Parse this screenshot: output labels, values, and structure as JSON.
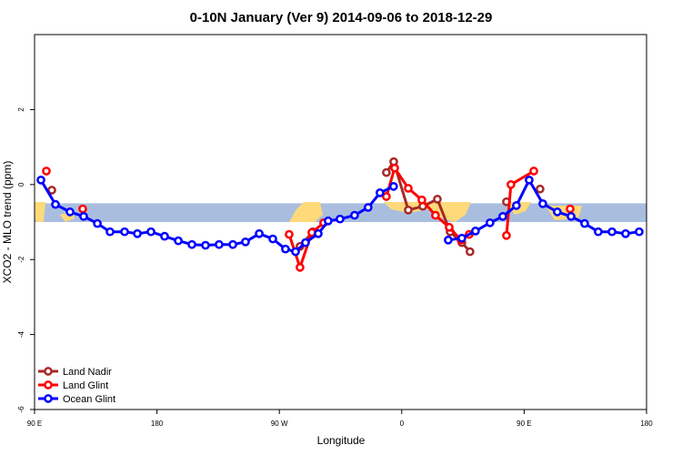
{
  "chart_data": {
    "type": "line",
    "title": "0-10N January (Ver 9)   2014-09-06 to 2018-12-29",
    "xlabel": "Longitude",
    "ylabel": "XCO2 - MLO trend (ppm)",
    "xlim": [
      90,
      540
    ],
    "xticks": [
      {
        "value": 90,
        "label": "90 E"
      },
      {
        "value": 180,
        "label": "180"
      },
      {
        "value": 270,
        "label": "90 W"
      },
      {
        "value": 360,
        "label": "0"
      },
      {
        "value": 450,
        "label": "90 E"
      },
      {
        "value": 540,
        "label": "180"
      }
    ],
    "ylim": [
      -6,
      4
    ],
    "yticks": [
      -6,
      -4,
      -2,
      0,
      2
    ],
    "band": [
      -1,
      -0.5
    ],
    "legend": "bottom-left",
    "series": [
      {
        "name": "Land Nadir",
        "color": "#a52a2a",
        "x": [
          102.7,
          null,
          285.2,
          294.6,
          null,
          348.7,
          354.1,
          364.8,
          375.5,
          386.2,
          395.6,
          404.2,
          410.2,
          null,
          437.0,
          null,
          461.7
        ],
        "values": [
          -0.15,
          null,
          -1.65,
          -1.26,
          null,
          0.32,
          0.61,
          -0.68,
          -0.58,
          -0.39,
          -1.26,
          -1.55,
          -1.79,
          null,
          -0.46,
          null,
          -0.12
        ]
      },
      {
        "name": "Land Glint",
        "color": "#ff0000",
        "x": [
          98.7,
          null,
          125.4,
          null,
          277.2,
          285.2,
          293.9,
          302.6,
          null,
          348.7,
          354.8,
          364.8,
          374.8,
          384.8,
          394.9,
          403.6,
          409.6,
          null,
          437.0,
          440.3,
          457.1,
          null,
          483.8
        ],
        "values": [
          0.36,
          null,
          -0.65,
          null,
          -1.33,
          -2.21,
          -1.28,
          -1.02,
          null,
          -0.32,
          0.44,
          -0.1,
          -0.41,
          -0.82,
          -1.14,
          -1.48,
          -1.33,
          null,
          -1.36,
          0.0,
          0.36,
          null,
          -0.65
        ]
      },
      {
        "name": "Ocean Glint",
        "color": "#0000ff",
        "x": [
          94.7,
          105.4,
          116.1,
          126.1,
          136.2,
          145.5,
          156.2,
          165.6,
          175.6,
          185.6,
          195.7,
          205.7,
          215.7,
          225.7,
          235.8,
          245.1,
          255.2,
          265.2,
          274.5,
          281.9,
          289.2,
          298.6,
          305.9,
          314.6,
          325.3,
          335.3,
          344.0,
          354.0,
          null,
          394.2,
          404.2,
          414.2,
          424.9,
          434.3,
          444.3,
          453.7,
          463.7,
          474.4,
          484.5,
          494.5,
          504.5,
          514.6,
          524.6,
          534.6
        ],
        "values": [
          0.12,
          -0.53,
          -0.73,
          -0.85,
          -1.04,
          -1.26,
          -1.26,
          -1.31,
          -1.26,
          -1.38,
          -1.5,
          -1.6,
          -1.62,
          -1.6,
          -1.6,
          -1.53,
          -1.31,
          -1.45,
          -1.72,
          -1.79,
          -1.55,
          -1.31,
          -0.97,
          -0.92,
          -0.82,
          -0.61,
          -0.22,
          -0.05,
          null,
          -1.48,
          -1.43,
          -1.24,
          -1.02,
          -0.85,
          -0.56,
          0.12,
          -0.51,
          -0.73,
          -0.85,
          -1.04,
          -1.26,
          -1.26,
          -1.31,
          -1.26
        ]
      }
    ]
  }
}
